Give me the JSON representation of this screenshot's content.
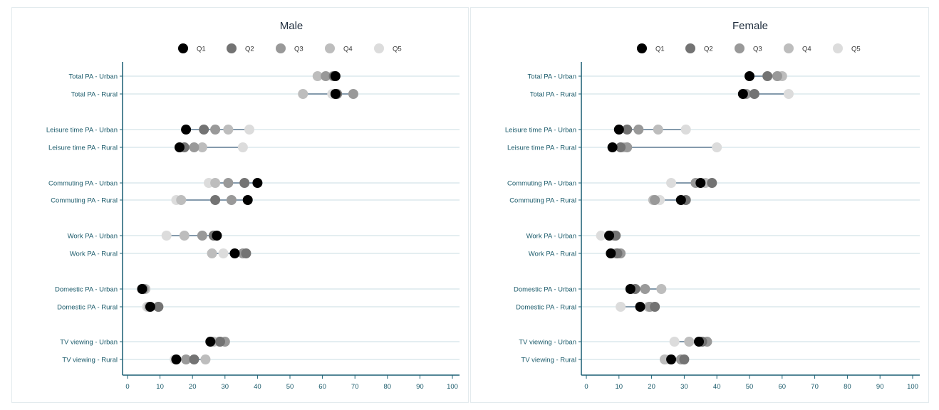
{
  "chart_data": {
    "type": "dot-plot",
    "x_range": [
      0,
      100
    ],
    "x_ticks": [
      0,
      10,
      20,
      30,
      40,
      50,
      60,
      70,
      80,
      90,
      100
    ],
    "grid": "horizontal",
    "legend_placement": "top-center",
    "quintiles": [
      "Q1",
      "Q2",
      "Q3",
      "Q4",
      "Q5"
    ],
    "quintile_colors": [
      "#000000",
      "#737373",
      "#999999",
      "#bdbdbd",
      "#dcdcdc"
    ],
    "axis_color": "#1a5f73",
    "grid_color": "#c8dde3",
    "range_line_color": "#3b5e7a",
    "categories": [
      "Total PA - Urban",
      "Total PA - Rural",
      "Leisure time PA - Urban",
      "Leisure time PA - Rural",
      "Commuting PA - Urban",
      "Commuting PA - Rural",
      "Work PA - Urban",
      "Work PA - Rural",
      "Domestic PA - Urban",
      "Domestic PA - Rural",
      "TV viewing - Urban",
      "TV viewing - Rural"
    ],
    "panels": [
      {
        "title": "Male",
        "rows": [
          {
            "category": "Total PA - Urban",
            "values": [
              64,
              63.5,
              61,
              58.5,
              63
            ]
          },
          {
            "category": "Total PA - Rural",
            "values": [
              64,
              64.5,
              69.5,
              54,
              63
            ]
          },
          {
            "category": "Leisure time PA - Urban",
            "values": [
              18,
              23.5,
              27,
              31,
              37.5
            ]
          },
          {
            "category": "Leisure time PA - Rural",
            "values": [
              16,
              17.5,
              20.5,
              23,
              35.5
            ]
          },
          {
            "category": "Commuting PA - Urban",
            "values": [
              40,
              36,
              31,
              27,
              25
            ]
          },
          {
            "category": "Commuting PA - Rural",
            "values": [
              37,
              27,
              32,
              16.5,
              15
            ]
          },
          {
            "category": "Work PA - Urban",
            "values": [
              27.5,
              26.5,
              23,
              17.5,
              12
            ]
          },
          {
            "category": "Work PA - Rural",
            "values": [
              33,
              36.5,
              35.5,
              26,
              29.5
            ]
          },
          {
            "category": "Domestic PA - Urban",
            "values": [
              4.5,
              4.5,
              5,
              5.5,
              5.5
            ]
          },
          {
            "category": "Domestic PA - Rural",
            "values": [
              7,
              9.5,
              9.5,
              6.5,
              6
            ]
          },
          {
            "category": "TV viewing - Urban",
            "values": [
              25.5,
              28.5,
              30,
              26.5,
              28
            ]
          },
          {
            "category": "TV viewing - Rural",
            "values": [
              15,
              20.5,
              18,
              24,
              14.5
            ]
          }
        ]
      },
      {
        "title": "Female",
        "rows": [
          {
            "category": "Total PA - Urban",
            "values": [
              50,
              55.5,
              58.5,
              60,
              59
            ]
          },
          {
            "category": "Total PA - Rural",
            "values": [
              48,
              51.5,
              49,
              49,
              62
            ]
          },
          {
            "category": "Leisure time PA - Urban",
            "values": [
              10,
              12.5,
              16,
              22,
              30.5
            ]
          },
          {
            "category": "Leisure time PA - Rural",
            "values": [
              8,
              10.5,
              12.5,
              11.5,
              40
            ]
          },
          {
            "category": "Commuting PA - Urban",
            "values": [
              35,
              38.5,
              33.5,
              36.5,
              26
            ]
          },
          {
            "category": "Commuting PA - Rural",
            "values": [
              29,
              30.5,
              21,
              20.5,
              22.5
            ]
          },
          {
            "category": "Work PA - Urban",
            "values": [
              7,
              9,
              8.5,
              7.5,
              4.5
            ]
          },
          {
            "category": "Work PA - Rural",
            "values": [
              7.5,
              9.5,
              10.5,
              9,
              8.5
            ]
          },
          {
            "category": "Domestic PA - Urban",
            "values": [
              13.5,
              15,
              18,
              23,
              14
            ]
          },
          {
            "category": "Domestic PA - Rural",
            "values": [
              16.5,
              21,
              19.5,
              19,
              10.5
            ]
          },
          {
            "category": "TV viewing - Urban",
            "values": [
              34.5,
              35.5,
              37,
              31.5,
              27
            ]
          },
          {
            "category": "TV viewing - Rural",
            "values": [
              26,
              30,
              29,
              24,
              25
            ]
          }
        ]
      }
    ]
  }
}
